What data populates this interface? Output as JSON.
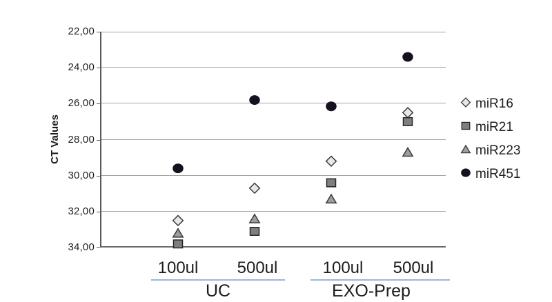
{
  "figure": {
    "background": "#ffffff"
  },
  "chart_data": {
    "type": "scatter",
    "title": "",
    "xlabel": "",
    "ylabel": "CT Values",
    "y_axis": {
      "min": 22,
      "max": 34,
      "step": 2,
      "inverted": true,
      "tick_labels": [
        "22,00",
        "24,00",
        "26,00",
        "28,00",
        "30,00",
        "32,00",
        "34,00"
      ]
    },
    "x_groups": [
      {
        "label": "UC",
        "volumes": [
          "100ul",
          "500ul"
        ]
      },
      {
        "label": "EXO-Prep",
        "volumes": [
          "100ul",
          "500ul"
        ]
      }
    ],
    "categories": [
      "UC 100ul",
      "UC 500ul",
      "EXO-Prep 100ul",
      "EXO-Prep 500ul"
    ],
    "series": [
      {
        "name": "miR16",
        "marker": "diamond",
        "fill": "#e7e7e7",
        "stroke": "#3a3a3a",
        "values": [
          32.5,
          30.7,
          29.2,
          26.5
        ]
      },
      {
        "name": "miR21",
        "marker": "square",
        "fill": "#7f7f7f",
        "stroke": "#262626",
        "values": [
          33.8,
          33.1,
          30.4,
          27.0
        ]
      },
      {
        "name": "miR223",
        "marker": "triangle",
        "fill": "#9e9e9e",
        "stroke": "#3a3a3a",
        "values": [
          33.2,
          32.4,
          31.3,
          28.7
        ]
      },
      {
        "name": "miR451",
        "marker": "circle",
        "fill": "#17101f",
        "stroke": "#17101f",
        "values": [
          29.6,
          25.8,
          26.15,
          23.4
        ]
      }
    ],
    "legend": {
      "position": "right",
      "entries": [
        "miR16",
        "miR21",
        "miR223",
        "miR451"
      ]
    },
    "grid": true,
    "colors": {
      "gridline": "#a3a3a3",
      "axis": "#595959",
      "group_underline": "#9bb6da",
      "text": "#1f1f1f"
    }
  }
}
